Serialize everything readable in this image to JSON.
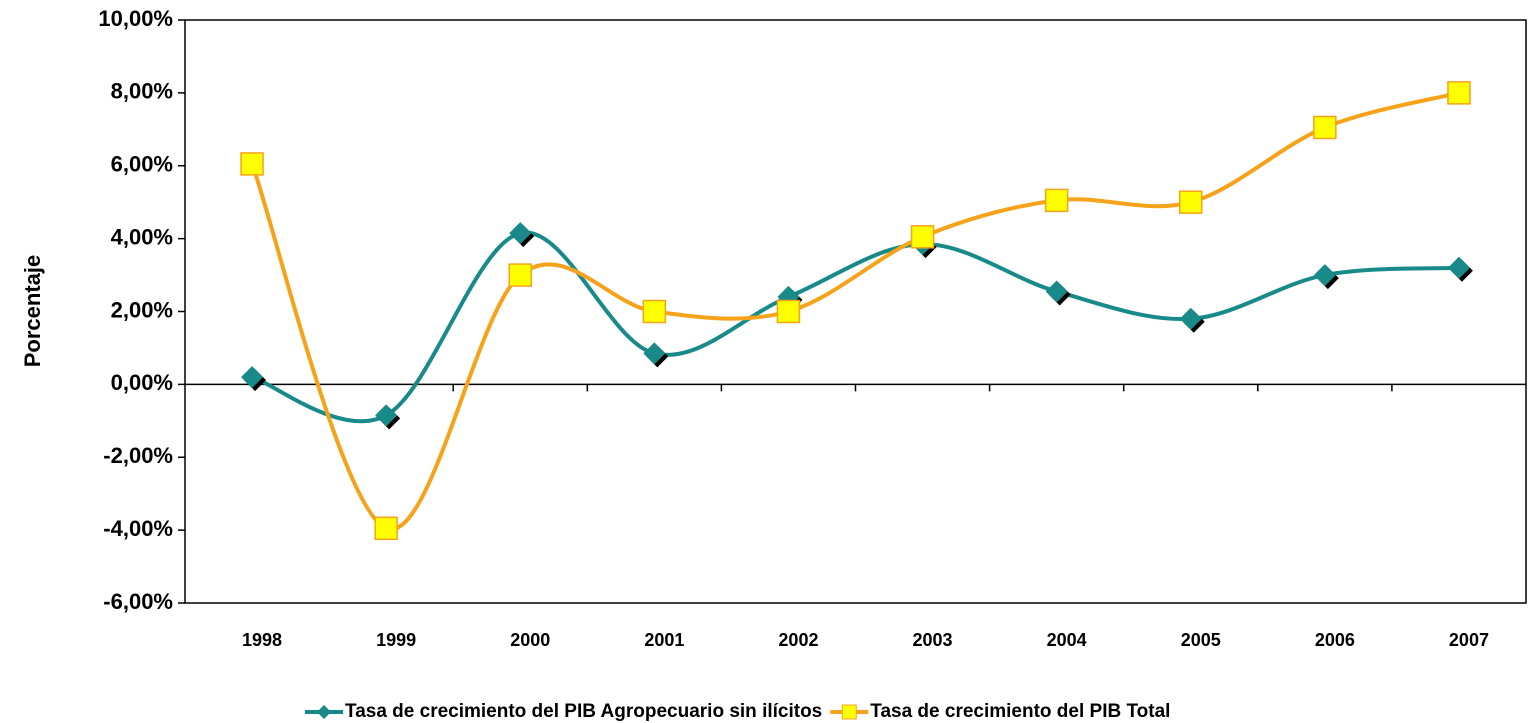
{
  "chart_data": {
    "type": "line",
    "y_label": "Porcentaje",
    "categories": [
      "1998",
      "1999",
      "2000",
      "2001",
      "2002",
      "2003",
      "2004",
      "2005",
      "2006",
      "2007"
    ],
    "series": [
      {
        "name": "Tasa de crecimiento del PIB Agropecuario sin ilícitos",
        "color": "#178a89",
        "marker": "diamond",
        "values": [
          0.2,
          -0.85,
          4.15,
          0.85,
          2.4,
          3.85,
          2.55,
          1.8,
          3.0,
          3.2
        ]
      },
      {
        "name": "Tasa de crecimiento del PIB Total",
        "color": "#f7a21b",
        "marker": "square",
        "values": [
          6.05,
          -3.95,
          3.0,
          2.0,
          2.0,
          4.05,
          5.05,
          5.0,
          7.05,
          8.0
        ]
      }
    ],
    "ylim": [
      -6,
      10
    ],
    "yticks": [
      {
        "value": -6,
        "label": "-6,00%"
      },
      {
        "value": -4,
        "label": "-4,00%"
      },
      {
        "value": -2,
        "label": "-2,00%"
      },
      {
        "value": 0,
        "label": "0,00%"
      },
      {
        "value": 2,
        "label": "2,00%"
      },
      {
        "value": 4,
        "label": "4,00%"
      },
      {
        "value": 6,
        "label": "6,00%"
      },
      {
        "value": 8,
        "label": "8,00%"
      },
      {
        "value": 10,
        "label": "10,00%"
      }
    ],
    "smooth": true,
    "legend": "bottom"
  }
}
